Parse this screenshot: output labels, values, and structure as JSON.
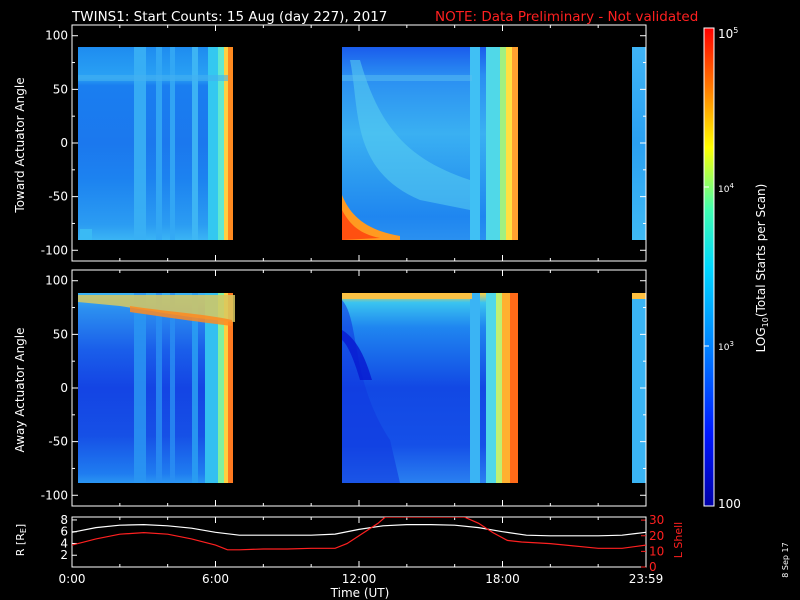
{
  "chart_data": [
    {
      "type": "heatmap",
      "title": "TWINS1: Start Counts: 15 Aug (day 227), 2017",
      "note": "NOTE: Data Preliminary - Not validated",
      "ylabel": "Toward Actuator Angle",
      "ylim": [
        -110,
        110
      ],
      "yticks": [
        100,
        50,
        0,
        -50,
        -100
      ],
      "xlim": [
        0,
        24
      ],
      "data_intervals_hours": [
        [
          0.0,
          6.8
        ],
        [
          11.3,
          18.6
        ],
        [
          23.5,
          24.0
        ]
      ],
      "angle_range": [
        -90,
        90
      ]
    },
    {
      "type": "heatmap",
      "ylabel": "Away Actuator Angle",
      "ylim": [
        -110,
        110
      ],
      "yticks": [
        100,
        50,
        0,
        -50,
        -100
      ],
      "xlim": [
        0,
        24
      ],
      "data_intervals_hours": [
        [
          0.0,
          6.8
        ],
        [
          11.3,
          18.6
        ],
        [
          23.5,
          24.0
        ]
      ],
      "angle_range": [
        -90,
        90
      ]
    },
    {
      "type": "line",
      "ylabel_left": "R [RE]",
      "ylabel_right": "L Shell",
      "xlabel": "Time (UT)",
      "xticks": [
        "0:00",
        "6:00",
        "12:00",
        "18:00",
        "23:59"
      ],
      "xtick_hours": [
        0,
        6,
        12,
        18,
        24
      ],
      "left_yticks": [
        2,
        4,
        6,
        8
      ],
      "left_ylim": [
        0,
        8.5
      ],
      "right_yticks": [
        0,
        10,
        20,
        30
      ],
      "right_ylim": [
        0,
        32
      ],
      "series": [
        {
          "name": "R",
          "color": "#ffffff",
          "x": [
            0,
            1,
            2,
            3,
            4,
            5,
            6,
            7,
            8,
            9,
            10,
            11,
            12,
            13,
            14,
            15,
            16,
            17,
            18,
            19,
            20,
            21,
            22,
            23,
            24
          ],
          "y": [
            5.9,
            6.7,
            7.1,
            7.2,
            7.0,
            6.6,
            5.9,
            5.4,
            5.4,
            5.4,
            5.4,
            5.6,
            6.4,
            7.0,
            7.2,
            7.2,
            7.1,
            6.7,
            6.0,
            5.4,
            5.3,
            5.3,
            5.3,
            5.4,
            5.9
          ]
        },
        {
          "name": "L",
          "color": "#ff2020",
          "x": [
            0,
            1,
            2,
            3,
            4,
            5,
            6,
            6.5,
            7,
            8,
            9,
            10,
            11,
            11.5,
            12,
            12.8,
            13.1,
            16.4,
            17,
            17.6,
            18.2,
            18.8,
            20,
            22,
            23,
            24
          ],
          "y": [
            14,
            18,
            21,
            22,
            21,
            18,
            14,
            11,
            11,
            11.5,
            11.5,
            12,
            12,
            15,
            20,
            28,
            32,
            32,
            28,
            22,
            17,
            16,
            15,
            12,
            12,
            14
          ]
        }
      ]
    }
  ],
  "colorbar": {
    "label": "LOG10(Total Starts per Scan)",
    "label_base": "LOG",
    "label_sub": "10",
    "label_rest": "(Total Starts per Scan)",
    "tick_100": "100",
    "tick_1000_base": "10",
    "tick_1000_exp": "3",
    "tick_1e4_base": "10",
    "tick_1e4_exp": "4",
    "tick_1e5_base": "10",
    "tick_1e5_exp": "5",
    "range": [
      100,
      100000
    ]
  },
  "date_stamp": "8 Sep 17",
  "re_label_base": "R [R",
  "re_label_sub": "E",
  "re_label_close": "]",
  "lshell_label": "L Shell"
}
